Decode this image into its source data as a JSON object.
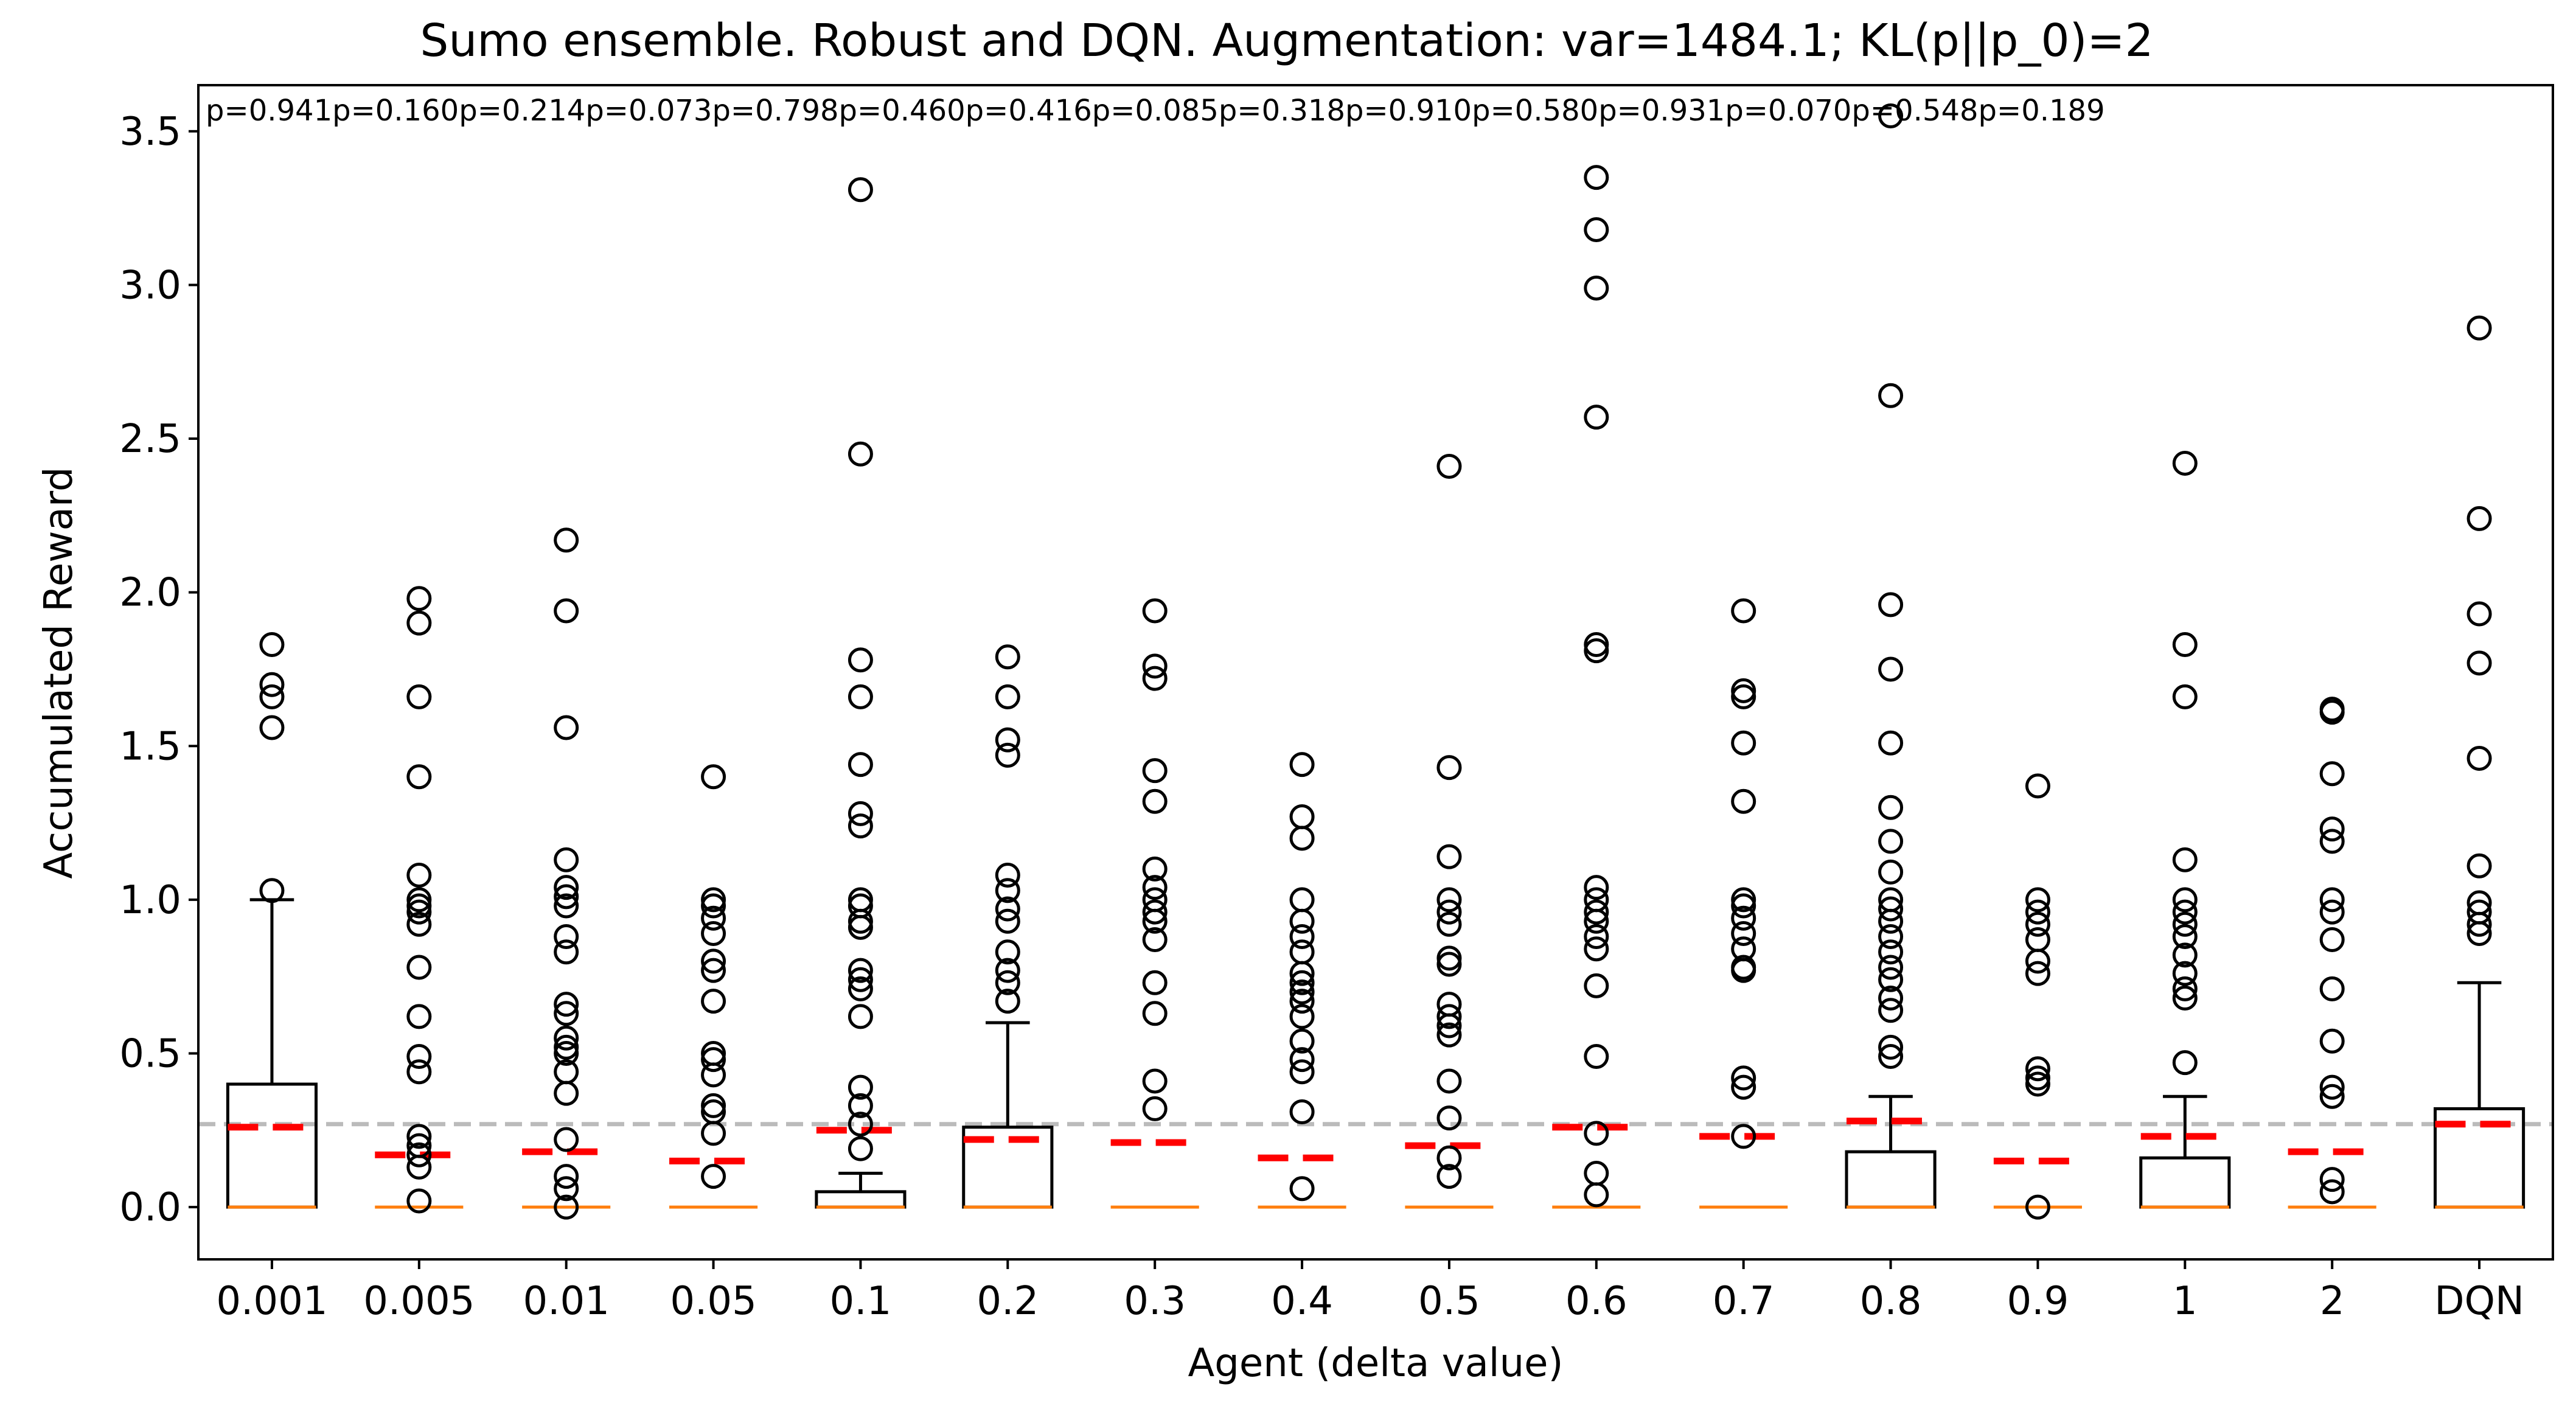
{
  "chart_data": {
    "type": "box",
    "title": "Sumo ensemble. Robust and DQN. Augmentation: var=1484.1; KL(p||p_0)=2",
    "xlabel": "Agent (delta value)",
    "ylabel": "Accumulated Reward",
    "ylim": [
      -0.17,
      3.65
    ],
    "yticks": [
      "0.0",
      "0.5",
      "1.0",
      "1.5",
      "2.0",
      "2.5",
      "3.0",
      "3.5"
    ],
    "reference_line": {
      "value": 0.27,
      "style": "dashed",
      "color": "#bbbbbb"
    },
    "grid": false,
    "colors": {
      "box": "#000000",
      "median": "#ff7f0e",
      "mean": "#ff0000",
      "reference": "#bbbbbb"
    },
    "categories": [
      "0.001",
      "0.005",
      "0.01",
      "0.05",
      "0.1",
      "0.2",
      "0.3",
      "0.4",
      "0.5",
      "0.6",
      "0.7",
      "0.8",
      "0.9",
      "1",
      "2",
      "DQN"
    ],
    "p_values": [
      "p=0.941",
      "p=0.160",
      "p=0.214",
      "p=0.073",
      "p=0.798",
      "p=0.460",
      "p=0.416",
      "p=0.085",
      "p=0.318",
      "p=0.910",
      "p=0.580",
      "p=0.931",
      "p=0.070",
      "p=0.548",
      "p=0.189"
    ],
    "boxes": [
      {
        "whislo": 0,
        "q1": 0,
        "med": 0,
        "q3": 0.4,
        "whishi": 1.0,
        "mean": 0.26,
        "fliers": [
          1.03,
          1.56,
          1.66,
          1.7,
          1.83
        ]
      },
      {
        "whislo": 0,
        "q1": 0,
        "med": 0,
        "q3": 0,
        "whishi": 0,
        "mean": 0.17,
        "fliers": [
          0.02,
          0.13,
          0.17,
          0.2,
          0.23,
          0.44,
          0.49,
          0.62,
          0.78,
          0.92,
          0.96,
          0.98,
          1.0,
          1.08,
          1.4,
          1.66,
          1.9,
          1.98
        ]
      },
      {
        "whislo": 0,
        "q1": 0,
        "med": 0,
        "q3": 0,
        "whishi": 0,
        "mean": 0.18,
        "fliers": [
          0.0,
          0.06,
          0.1,
          0.22,
          0.37,
          0.44,
          0.5,
          0.52,
          0.55,
          0.63,
          0.66,
          0.83,
          0.88,
          0.98,
          1.01,
          1.04,
          1.13,
          1.56,
          1.94,
          2.17
        ]
      },
      {
        "whislo": 0,
        "q1": 0,
        "med": 0,
        "q3": 0,
        "whishi": 0,
        "mean": 0.15,
        "fliers": [
          0.1,
          0.24,
          0.31,
          0.33,
          0.43,
          0.48,
          0.5,
          0.67,
          0.77,
          0.8,
          0.89,
          0.94,
          0.98,
          1.0,
          1.4
        ]
      },
      {
        "whislo": 0,
        "q1": 0,
        "med": 0,
        "q3": 0.05,
        "whishi": 0.11,
        "mean": 0.25,
        "fliers": [
          0.19,
          0.27,
          0.33,
          0.39,
          0.62,
          0.71,
          0.74,
          0.77,
          0.91,
          0.93,
          0.98,
          1.0,
          1.24,
          1.28,
          1.44,
          1.66,
          1.78,
          2.45,
          3.31
        ]
      },
      {
        "whislo": 0,
        "q1": 0,
        "med": 0,
        "q3": 0.26,
        "whishi": 0.6,
        "mean": 0.22,
        "fliers": [
          0.67,
          0.73,
          0.77,
          0.83,
          0.93,
          0.97,
          1.03,
          1.08,
          1.47,
          1.52,
          1.66,
          1.79
        ]
      },
      {
        "whislo": 0,
        "q1": 0,
        "med": 0,
        "q3": 0,
        "whishi": 0,
        "mean": 0.21,
        "fliers": [
          0.32,
          0.41,
          0.63,
          0.73,
          0.87,
          0.93,
          0.96,
          1.0,
          1.04,
          1.1,
          1.32,
          1.42,
          1.72,
          1.76,
          1.94
        ]
      },
      {
        "whislo": 0,
        "q1": 0,
        "med": 0,
        "q3": 0,
        "whishi": 0,
        "mean": 0.16,
        "fliers": [
          0.06,
          0.31,
          0.44,
          0.48,
          0.54,
          0.62,
          0.67,
          0.7,
          0.73,
          0.76,
          0.83,
          0.88,
          0.93,
          1.0,
          1.2,
          1.27,
          1.44
        ]
      },
      {
        "whislo": 0,
        "q1": 0,
        "med": 0,
        "q3": 0,
        "whishi": 0,
        "mean": 0.2,
        "fliers": [
          0.1,
          0.16,
          0.29,
          0.41,
          0.56,
          0.59,
          0.62,
          0.66,
          0.79,
          0.81,
          0.92,
          0.96,
          1.0,
          1.14,
          1.43,
          2.41
        ]
      },
      {
        "whislo": 0,
        "q1": 0,
        "med": 0,
        "q3": 0,
        "whishi": 0,
        "mean": 0.26,
        "fliers": [
          0.04,
          0.11,
          0.24,
          0.49,
          0.72,
          0.84,
          0.88,
          0.93,
          0.96,
          1.0,
          1.04,
          1.81,
          1.83,
          2.57,
          2.99,
          3.18,
          3.35
        ]
      },
      {
        "whislo": 0,
        "q1": 0,
        "med": 0,
        "q3": 0,
        "whishi": 0,
        "mean": 0.23,
        "fliers": [
          0.23,
          0.39,
          0.42,
          0.77,
          0.78,
          0.84,
          0.89,
          0.94,
          0.98,
          1.0,
          1.32,
          1.51,
          1.66,
          1.68,
          1.94
        ]
      },
      {
        "whislo": 0,
        "q1": 0,
        "med": 0,
        "q3": 0.18,
        "whishi": 0.36,
        "mean": 0.28,
        "fliers": [
          0.49,
          0.52,
          0.64,
          0.68,
          0.74,
          0.78,
          0.83,
          0.88,
          0.93,
          0.97,
          1.0,
          1.09,
          1.19,
          1.3,
          1.51,
          1.75,
          1.96,
          2.64,
          3.55
        ]
      },
      {
        "whislo": 0,
        "q1": 0,
        "med": 0,
        "q3": 0,
        "whishi": 0,
        "mean": 0.15,
        "fliers": [
          0.0,
          0.4,
          0.42,
          0.45,
          0.76,
          0.8,
          0.87,
          0.92,
          0.96,
          1.0,
          1.37
        ]
      },
      {
        "whislo": 0,
        "q1": 0,
        "med": 0,
        "q3": 0.16,
        "whishi": 0.36,
        "mean": 0.23,
        "fliers": [
          0.47,
          0.68,
          0.71,
          0.76,
          0.82,
          0.88,
          0.92,
          0.96,
          1.0,
          1.13,
          1.66,
          1.83,
          2.42
        ]
      },
      {
        "whislo": 0,
        "q1": 0,
        "med": 0,
        "q3": 0,
        "whishi": 0,
        "mean": 0.18,
        "fliers": [
          0.05,
          0.09,
          0.36,
          0.39,
          0.54,
          0.71,
          0.87,
          0.96,
          1.0,
          1.19,
          1.23,
          1.41,
          1.61,
          1.62
        ]
      },
      {
        "whislo": 0,
        "q1": 0,
        "med": 0,
        "q3": 0.32,
        "whishi": 0.73,
        "mean": 0.27,
        "fliers": [
          0.89,
          0.92,
          0.96,
          0.99,
          1.11,
          1.46,
          1.77,
          1.93,
          2.24,
          2.86
        ]
      }
    ]
  }
}
